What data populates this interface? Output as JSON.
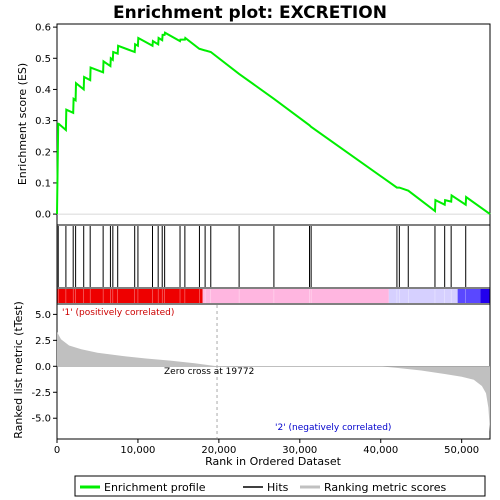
{
  "chart_data": {
    "type": "line",
    "title": "Enrichment plot: EXCRETION",
    "xlabel": "Rank in Ordered Dataset",
    "ylabel_top": "Enrichment score (ES)",
    "ylabel_bottom": "Ranked list metric (tTest)",
    "xlim": [
      0,
      53500
    ],
    "ylim_es": [
      -0.035,
      0.61
    ],
    "ylim_metric": [
      -7.0,
      6.0
    ],
    "x_ticks": [
      0,
      10000,
      20000,
      30000,
      40000,
      50000
    ],
    "x_tick_labels": [
      "0",
      "10,000",
      "20,000",
      "30,000",
      "40,000",
      "50,000"
    ],
    "es_ticks": [
      0.0,
      0.1,
      0.2,
      0.3,
      0.4,
      0.5,
      0.6
    ],
    "es_tick_labels": [
      "0.0",
      "0.1",
      "0.2",
      "0.3",
      "0.4",
      "0.5",
      "0.6"
    ],
    "metric_ticks": [
      5.0,
      2.5,
      0.0,
      -2.5,
      -5.0
    ],
    "metric_tick_labels": [
      "5.0",
      "2.5",
      "0.0",
      "-2.5",
      "-5.0"
    ],
    "zero_cross": 19772,
    "zero_cross_label": "Zero cross at 19772",
    "pos_label": "'1' (positively correlated)",
    "neg_label": "'2' (negatively correlated)",
    "series": [
      {
        "name": "Enrichment profile",
        "color": "#00ee00",
        "x": [
          0,
          150,
          200,
          1100,
          1150,
          2000,
          2050,
          2300,
          2350,
          3300,
          3350,
          4100,
          4150,
          5700,
          5750,
          6600,
          6650,
          6900,
          6950,
          7500,
          7550,
          9600,
          9650,
          10000,
          10050,
          11800,
          11850,
          12500,
          12550,
          13000,
          13050,
          13300,
          13350,
          15200,
          15250,
          15800,
          15850,
          17600,
          17650,
          18300,
          18350,
          19000,
          22500,
          26800,
          31200,
          31400,
          42000,
          42300,
          43400,
          46700,
          46750,
          47900,
          47950,
          48700,
          48750,
          50500,
          50550,
          53500
        ],
        "y": [
          0.0,
          0.29,
          0.29,
          0.27,
          0.335,
          0.325,
          0.37,
          0.365,
          0.42,
          0.4,
          0.44,
          0.43,
          0.47,
          0.455,
          0.49,
          0.475,
          0.5,
          0.495,
          0.52,
          0.515,
          0.54,
          0.52,
          0.545,
          0.54,
          0.565,
          0.54,
          0.555,
          0.545,
          0.565,
          0.558,
          0.575,
          0.575,
          0.582,
          0.555,
          0.56,
          0.56,
          0.565,
          0.53,
          0.53,
          0.525,
          0.525,
          0.52,
          0.45,
          0.37,
          0.285,
          0.28,
          0.085,
          0.085,
          0.075,
          0.01,
          0.045,
          0.03,
          0.045,
          0.04,
          0.06,
          0.03,
          0.055,
          0.0
        ]
      }
    ],
    "hits": [
      150,
      1100,
      2000,
      2300,
      3300,
      4100,
      5700,
      6600,
      6900,
      7500,
      9600,
      10000,
      11800,
      12500,
      13000,
      13300,
      15200,
      15800,
      17600,
      18300,
      19000,
      22500,
      26800,
      31200,
      31400,
      42000,
      42300,
      43400,
      46700,
      47900,
      48700,
      50500
    ],
    "metric_profile": {
      "x": [
        0,
        500,
        1500,
        3000,
        5000,
        8000,
        11000,
        14000,
        17000,
        19772,
        25000,
        30000,
        35000,
        40000,
        42000,
        45000,
        48000,
        50000,
        51500,
        52500,
        53000,
        53300,
        53500
      ],
      "y": [
        3.3,
        2.6,
        2.0,
        1.65,
        1.3,
        1.0,
        0.75,
        0.55,
        0.3,
        0.0,
        0.0,
        0.0,
        0.0,
        0.0,
        -0.15,
        -0.4,
        -0.75,
        -1.0,
        -1.3,
        -1.9,
        -2.6,
        -4.0,
        -6.3
      ]
    },
    "legend": [
      "Enrichment profile",
      "Hits",
      "Ranking metric scores"
    ],
    "colors": {
      "es_line": "#00ee00",
      "hit": "#000000",
      "metric_fill": "#c0c0c0",
      "zero_line": "#aaaaaa",
      "pos_text": "#cc0000",
      "neg_text": "#0000cc",
      "bar_red": "#ee0000",
      "bar_pink": "#ffb6e0",
      "bar_lavender": "#d6d0ff",
      "bar_blue": "#2200ee"
    }
  }
}
